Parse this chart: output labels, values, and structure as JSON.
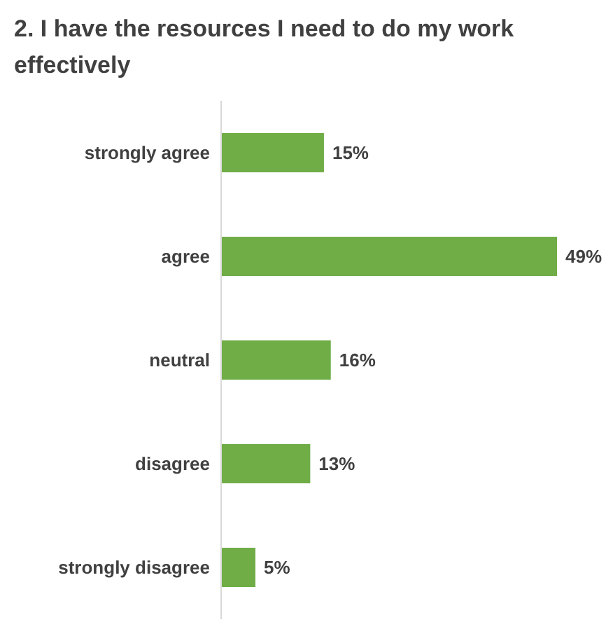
{
  "chart_data": {
    "type": "bar",
    "title": "2. I have the resources I need to do my work effectively",
    "orientation": "horizontal",
    "categories": [
      "strongly agree",
      "agree",
      "neutral",
      "disagree",
      "strongly disagree"
    ],
    "values": [
      15,
      49,
      16,
      13,
      5
    ],
    "value_labels": [
      "15%",
      "49%",
      "16%",
      "13%",
      "5%"
    ],
    "color": "#70ad47",
    "grid": false,
    "legend": false
  }
}
